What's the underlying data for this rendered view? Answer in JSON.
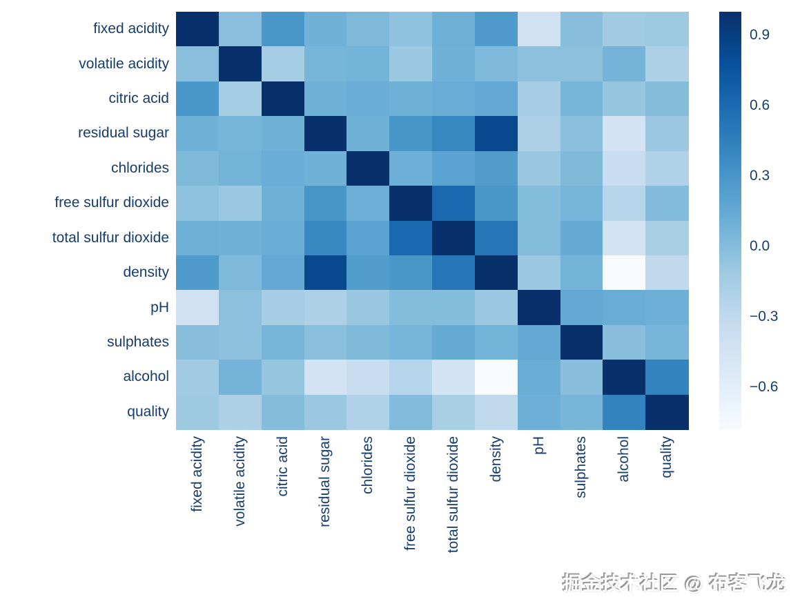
{
  "chart_data": {
    "type": "heatmap",
    "title": "",
    "xlabel": "",
    "ylabel": "",
    "labels": [
      "fixed acidity",
      "volatile acidity",
      "citric acid",
      "residual sugar",
      "chlorides",
      "free sulfur dioxide",
      "total sulfur dioxide",
      "density",
      "pH",
      "sulphates",
      "alcohol",
      "quality"
    ],
    "matrix": [
      [
        1.0,
        -0.023,
        0.289,
        0.089,
        0.023,
        -0.049,
        0.091,
        0.265,
        -0.426,
        -0.017,
        -0.121,
        -0.114
      ],
      [
        -0.023,
        1.0,
        -0.149,
        0.064,
        0.071,
        -0.097,
        0.089,
        0.027,
        -0.032,
        -0.036,
        0.068,
        -0.195
      ],
      [
        0.289,
        -0.149,
        1.0,
        0.094,
        0.114,
        0.094,
        0.121,
        0.15,
        -0.164,
        0.062,
        -0.076,
        -0.009
      ],
      [
        0.089,
        0.064,
        0.094,
        1.0,
        0.089,
        0.299,
        0.401,
        0.839,
        -0.194,
        -0.027,
        -0.451,
        -0.098
      ],
      [
        0.023,
        0.071,
        0.114,
        0.089,
        1.0,
        0.101,
        0.199,
        0.257,
        -0.09,
        0.017,
        -0.36,
        -0.21
      ],
      [
        -0.049,
        -0.097,
        0.094,
        0.299,
        0.101,
        1.0,
        0.616,
        0.294,
        -0.001,
        0.059,
        -0.25,
        0.008
      ],
      [
        0.091,
        0.089,
        0.121,
        0.401,
        0.199,
        0.616,
        1.0,
        0.53,
        0.002,
        0.135,
        -0.449,
        -0.175
      ],
      [
        0.265,
        0.027,
        0.15,
        0.839,
        0.257,
        0.294,
        0.53,
        1.0,
        -0.094,
        0.074,
        -0.78,
        -0.307
      ],
      [
        -0.426,
        -0.032,
        -0.164,
        -0.194,
        -0.09,
        -0.001,
        0.002,
        -0.094,
        1.0,
        0.156,
        0.121,
        0.099
      ],
      [
        -0.017,
        -0.036,
        0.062,
        -0.027,
        0.017,
        0.059,
        0.135,
        0.074,
        0.156,
        1.0,
        -0.017,
        0.054
      ],
      [
        -0.121,
        0.068,
        -0.076,
        -0.451,
        -0.36,
        -0.25,
        -0.449,
        -0.78,
        0.121,
        -0.017,
        1.0,
        0.436
      ],
      [
        -0.114,
        -0.195,
        -0.009,
        -0.098,
        -0.21,
        0.008,
        -0.175,
        -0.307,
        0.099,
        0.054,
        0.436,
        1.0
      ]
    ],
    "colormap": "Blues",
    "colormap_stops": [
      "#f7fbff",
      "#deebf7",
      "#c6dbef",
      "#9ecae1",
      "#6baed6",
      "#4292c6",
      "#2171b5",
      "#08519c",
      "#08306b"
    ],
    "vmin": -0.78,
    "vmax": 1.0,
    "grid": false,
    "legend_position": "right",
    "colorbar_ticks": [
      {
        "value": 0.9,
        "label": "0.9"
      },
      {
        "value": 0.6,
        "label": "0.6"
      },
      {
        "value": 0.3,
        "label": "0.3"
      },
      {
        "value": 0.0,
        "label": "0.0"
      },
      {
        "value": -0.3,
        "label": "−0.3"
      },
      {
        "value": -0.6,
        "label": "−0.6"
      }
    ]
  },
  "watermark": {
    "text": "掘金技术社区 @ 布客飞龙"
  },
  "colors": {
    "background": "#ffffff",
    "label_text": "#163d6d",
    "heatmap_max": "#08306b",
    "heatmap_min": "#f7fbff"
  }
}
